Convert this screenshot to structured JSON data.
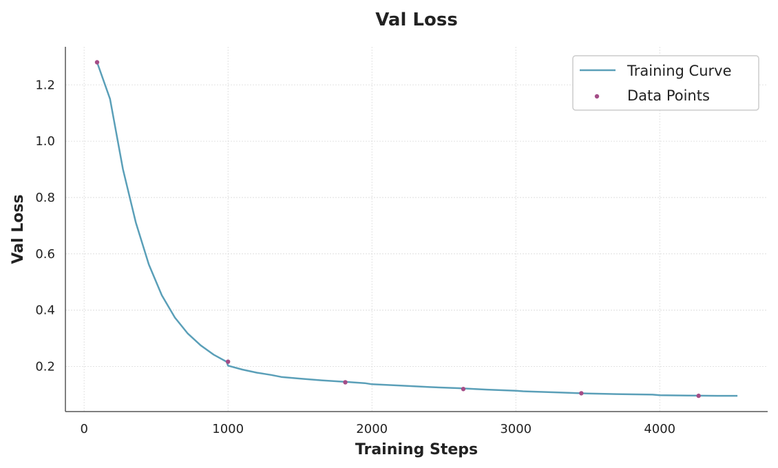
{
  "chart_data": {
    "type": "line",
    "title": "Val Loss",
    "xlabel": "Training Steps",
    "ylabel": "Val Loss",
    "xlim": [
      -130,
      4750
    ],
    "ylim": [
      0.04,
      1.335
    ],
    "xticks": [
      0,
      1000,
      2000,
      3000,
      4000
    ],
    "xtick_labels": [
      "0",
      "1000",
      "2000",
      "3000",
      "4000"
    ],
    "yticks": [
      0.2,
      0.4,
      0.6,
      0.8,
      1.0,
      1.2
    ],
    "ytick_labels": [
      "0.2",
      "0.4",
      "0.6",
      "0.8",
      "1.0",
      "1.2"
    ],
    "grid": true,
    "legend_position": "top-right",
    "colors": {
      "curve": "#5a9fb8",
      "points": "#a44d87",
      "axis": "#555555",
      "grid": "#d9d9d9"
    },
    "series": [
      {
        "name": "Training Curve",
        "kind": "line",
        "x": [
          90,
          180,
          270,
          360,
          450,
          540,
          630,
          720,
          810,
          900,
          990,
          1000,
          1100,
          1200,
          1300,
          1370,
          1500,
          1650,
          1800,
          1950,
          2000,
          2200,
          2400,
          2600,
          2800,
          3000,
          3050,
          3300,
          3500,
          3700,
          3950,
          4000,
          4200,
          4400,
          4540
        ],
        "y": [
          1.28,
          1.15,
          0.9,
          0.71,
          0.562,
          0.453,
          0.374,
          0.317,
          0.275,
          0.242,
          0.217,
          0.203,
          0.189,
          0.178,
          0.17,
          0.163,
          0.157,
          0.151,
          0.146,
          0.141,
          0.137,
          0.132,
          0.127,
          0.123,
          0.118,
          0.114,
          0.112,
          0.108,
          0.104,
          0.102,
          0.1,
          0.098,
          0.097,
          0.096,
          0.096
        ]
      },
      {
        "name": "Data Points",
        "kind": "scatter",
        "x": [
          90,
          1000,
          1815,
          2635,
          3455,
          4270
        ],
        "y": [
          1.28,
          0.217,
          0.144,
          0.12,
          0.105,
          0.096
        ]
      }
    ]
  }
}
